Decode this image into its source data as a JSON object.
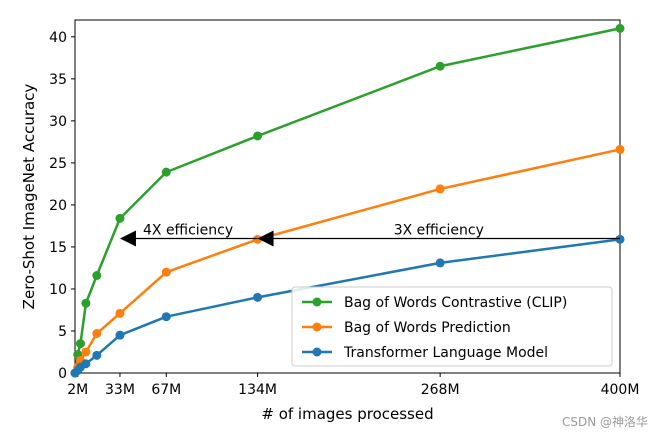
{
  "chart_data": {
    "type": "line",
    "xlabel": "# of images processed",
    "ylabel": "Zero-Shot ImageNet Accuracy",
    "xlim": [
      0,
      400
    ],
    "ylim": [
      0,
      42
    ],
    "x_ticks": [
      {
        "value": 2,
        "label": "2M"
      },
      {
        "value": 33,
        "label": "33M"
      },
      {
        "value": 67,
        "label": "67M"
      },
      {
        "value": 134,
        "label": "134M"
      },
      {
        "value": 268,
        "label": "268M"
      },
      {
        "value": 400,
        "label": "400M"
      }
    ],
    "y_ticks": [
      0,
      5,
      10,
      15,
      20,
      25,
      30,
      35,
      40
    ],
    "grid": false,
    "legend_position": "lower-right",
    "series": [
      {
        "name": "Bag of Words Contrastive (CLIP)",
        "color": "#2ca02c",
        "x": [
          0,
          2,
          4,
          8,
          16,
          33,
          67,
          134,
          268,
          400
        ],
        "y": [
          0,
          2.2,
          3.5,
          8.3,
          11.6,
          18.4,
          23.9,
          28.2,
          36.5,
          41.0
        ]
      },
      {
        "name": "Bag of Words Prediction",
        "color": "#ff7f0e",
        "x": [
          0,
          2,
          4,
          8,
          16,
          33,
          67,
          134,
          268,
          400
        ],
        "y": [
          0,
          0.7,
          1.5,
          2.5,
          4.7,
          7.1,
          12.0,
          15.9,
          21.9,
          26.6
        ]
      },
      {
        "name": "Transformer Language Model",
        "color": "#1f77b4",
        "x": [
          0,
          2,
          4,
          8,
          16,
          33,
          67,
          134,
          268,
          400
        ],
        "y": [
          0,
          0.3,
          0.7,
          1.1,
          2.1,
          4.5,
          6.7,
          9.0,
          13.1,
          15.9
        ]
      }
    ],
    "annotations": [
      {
        "text": "4X efficiency",
        "arrow_from_x": 134,
        "arrow_to_x": 33,
        "y": 16,
        "label_x": 83
      },
      {
        "text": "3X efficiency",
        "arrow_from_x": 400,
        "arrow_to_x": 134,
        "y": 16,
        "label_x": 267
      }
    ]
  },
  "watermark": "CSDN @神洛华"
}
